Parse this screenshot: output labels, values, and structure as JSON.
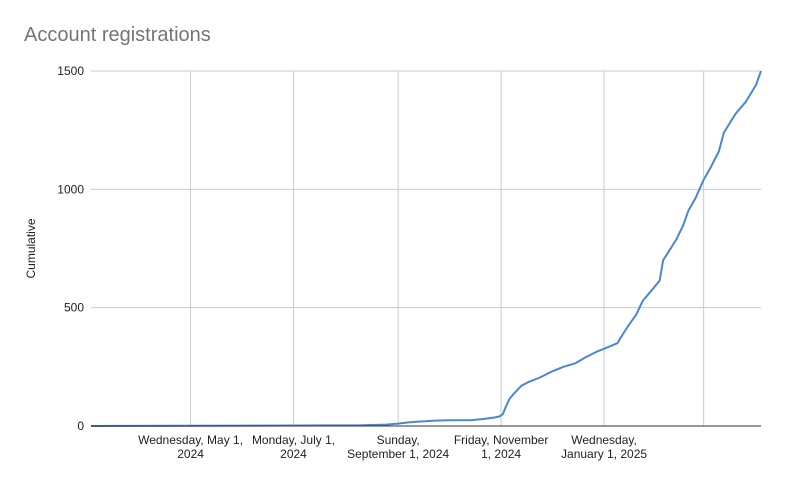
{
  "chart_data": {
    "type": "line",
    "title": "Account registrations",
    "xlabel": "",
    "ylabel": "Cumulative",
    "ylim": [
      0,
      1500
    ],
    "xlim": [
      "2024-03-03",
      "2025-04-04"
    ],
    "grid": true,
    "colors": {
      "line": "#4a86d6",
      "grid": "#cccccc",
      "baseline": "#333333"
    },
    "y_ticks": [
      {
        "value": 0,
        "label": "0"
      },
      {
        "value": 500,
        "label": "500"
      },
      {
        "value": 1000,
        "label": "1000"
      },
      {
        "value": 1500,
        "label": "1500"
      }
    ],
    "x_ticks": [
      {
        "date": "2024-05-01",
        "label": [
          "Wednesday, May 1,",
          "2024"
        ]
      },
      {
        "date": "2024-07-01",
        "label": [
          "Monday, July 1,",
          "2024"
        ]
      },
      {
        "date": "2024-09-01",
        "label": [
          "Sunday,",
          "September 1, 2024"
        ]
      },
      {
        "date": "2024-11-01",
        "label": [
          "Friday, November",
          "1, 2024"
        ]
      },
      {
        "date": "2025-01-01",
        "label": [
          "Wednesday,",
          "January 1, 2025"
        ]
      },
      {
        "date": "2025-03-01",
        "label": [
          "",
          ""
        ]
      }
    ],
    "series": [
      {
        "points": [
          [
            "2024-03-03",
            0
          ],
          [
            "2024-05-01",
            1
          ],
          [
            "2024-07-01",
            2
          ],
          [
            "2024-08-10",
            3
          ],
          [
            "2024-08-25",
            6
          ],
          [
            "2024-09-01",
            10
          ],
          [
            "2024-09-07",
            15
          ],
          [
            "2024-09-12",
            18
          ],
          [
            "2024-09-17",
            20
          ],
          [
            "2024-09-23",
            23
          ],
          [
            "2024-10-01",
            24
          ],
          [
            "2024-10-15",
            25
          ],
          [
            "2024-10-22",
            30
          ],
          [
            "2024-10-28",
            36
          ],
          [
            "2024-10-31",
            40
          ],
          [
            "2024-11-02",
            50
          ],
          [
            "2024-11-04",
            85
          ],
          [
            "2024-11-06",
            115
          ],
          [
            "2024-11-09",
            140
          ],
          [
            "2024-11-13",
            170
          ],
          [
            "2024-11-17",
            185
          ],
          [
            "2024-11-24",
            205
          ],
          [
            "2024-12-01",
            230
          ],
          [
            "2024-12-08",
            250
          ],
          [
            "2024-12-15",
            265
          ],
          [
            "2024-12-21",
            290
          ],
          [
            "2024-12-28",
            315
          ],
          [
            "2025-01-04",
            335
          ],
          [
            "2025-01-09",
            350
          ],
          [
            "2025-01-11",
            375
          ],
          [
            "2025-01-15",
            420
          ],
          [
            "2025-01-20",
            470
          ],
          [
            "2025-01-24",
            530
          ],
          [
            "2025-01-30",
            580
          ],
          [
            "2025-02-03",
            615
          ],
          [
            "2025-02-05",
            700
          ],
          [
            "2025-02-09",
            745
          ],
          [
            "2025-02-13",
            790
          ],
          [
            "2025-02-17",
            850
          ],
          [
            "2025-02-20",
            910
          ],
          [
            "2025-02-24",
            960
          ],
          [
            "2025-03-01",
            1040
          ],
          [
            "2025-03-05",
            1090
          ],
          [
            "2025-03-10",
            1160
          ],
          [
            "2025-03-13",
            1240
          ],
          [
            "2025-03-20",
            1320
          ],
          [
            "2025-03-26",
            1370
          ],
          [
            "2025-04-01",
            1440
          ],
          [
            "2025-04-04",
            1500
          ]
        ]
      }
    ]
  }
}
